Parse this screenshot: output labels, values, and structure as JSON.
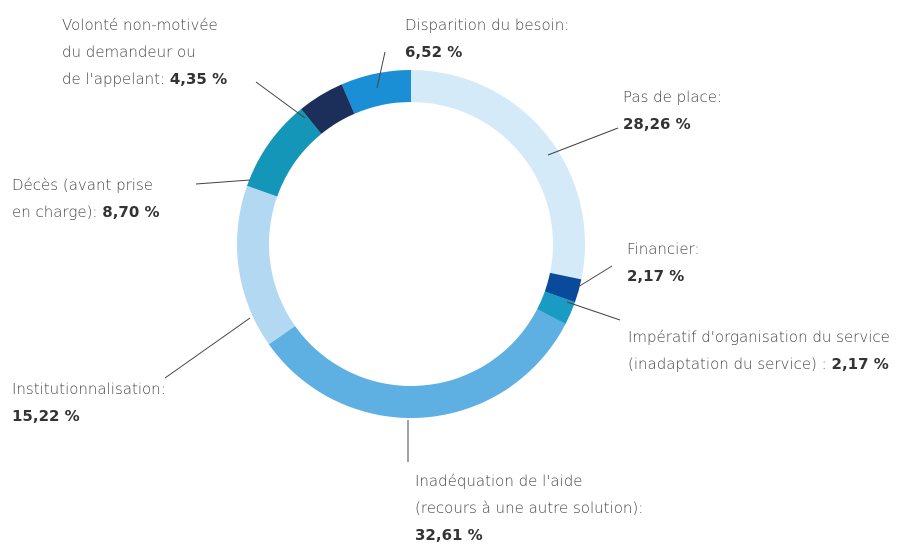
{
  "chart_data": {
    "type": "donut",
    "categories": [
      "Pas de place:",
      "Financier:",
      "Impératif d'organisation du service\n(inadaptation du service) :",
      "Inadéquation de l'aide\n(recours à une autre solution):",
      "Institutionnalisation:",
      "Décès (avant prise\nen charge):",
      "Volonté non-motivée\ndu demandeur ou\nde l'appelant:",
      "Disparition du besoin:"
    ],
    "values": [
      28.26,
      2.17,
      2.17,
      32.61,
      15.22,
      8.7,
      4.35,
      6.52
    ],
    "value_labels": [
      "28,26 %",
      "2,17 %",
      "2,17 %",
      "32,61 %",
      "15,22 %",
      "8,70 %",
      "4,35 %",
      "6,52 %"
    ],
    "colors": [
      "#d4eaf9",
      "#0a4a9a",
      "#1a9bc4",
      "#5fb0e2",
      "#b3d9f2",
      "#1496b8",
      "#1c2e5a",
      "#1a8fd6"
    ]
  }
}
